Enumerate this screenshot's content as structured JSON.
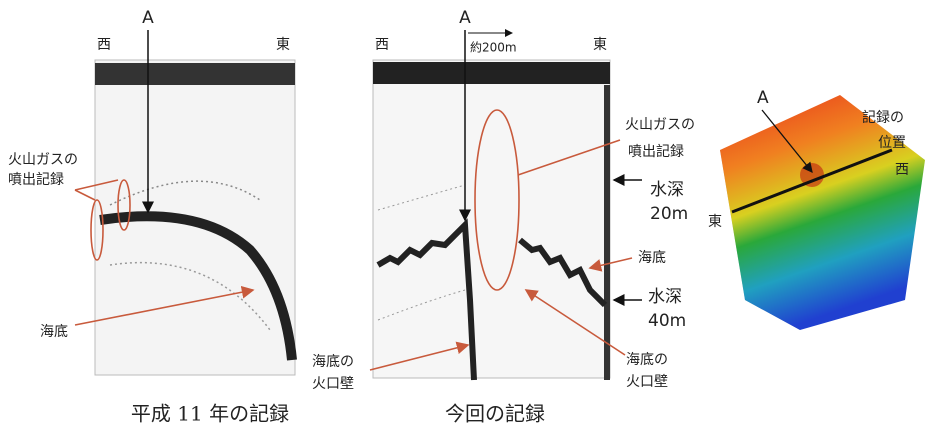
{
  "left_panel": {
    "arrow_label": "A",
    "west": "西",
    "east": "東",
    "gas_label": [
      "火山ガスの",
      "噴出記録"
    ],
    "seafloor": "海底",
    "caption": "平成 11 年の記録"
  },
  "middle_panel": {
    "arrow_label": "A",
    "west": "西",
    "east": "東",
    "scale": "約200m",
    "gas_label": [
      "火山ガスの",
      "噴出記録"
    ],
    "depth_20": [
      "水深",
      "20m"
    ],
    "seafloor": "海底",
    "depth_40": [
      "水深",
      "40m"
    ],
    "crater_wall_left": [
      "海底の",
      "火口壁"
    ],
    "crater_wall_right": [
      "海底の",
      "火口壁"
    ],
    "caption": "今回の記録"
  },
  "right_panel": {
    "arrow_label": "A",
    "position_label": [
      "記録の",
      "位置"
    ],
    "west": "西",
    "east": "東"
  }
}
